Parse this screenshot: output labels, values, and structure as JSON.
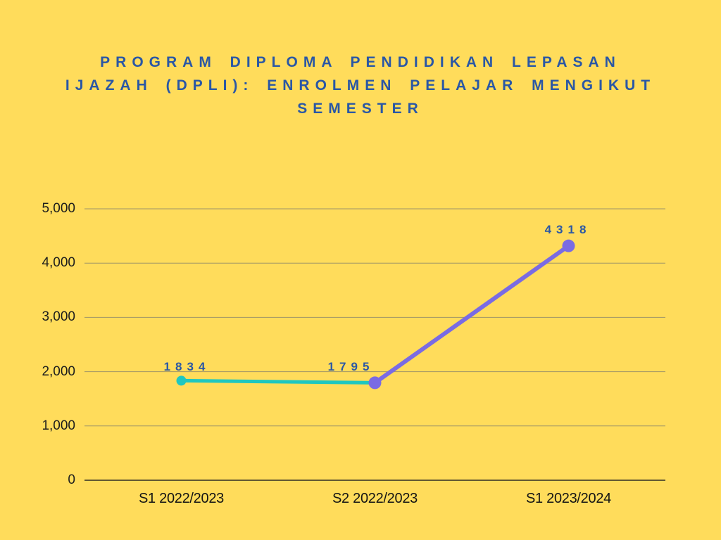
{
  "chart_data": {
    "type": "line",
    "title": "PROGRAM DIPLOMA PENDIDIKAN LEPASAN IJAZAH (DPLI): ENROLMEN PELAJAR MENGIKUT SEMESTER",
    "title_lines": [
      "PROGRAM DIPLOMA PENDIDIKAN LEPASAN",
      "IJAZAH (DPLI): ENROLMEN PELAJAR MENGIKUT",
      "SEMESTER"
    ],
    "categories": [
      "S1 2022/2023",
      "S2 2022/2023",
      "S1 2023/2024"
    ],
    "values": [
      1834,
      1795,
      4318
    ],
    "data_labels": [
      "1834",
      "1795",
      "4318"
    ],
    "segment_colors": [
      "#1FC7C0",
      "#7A6BE3"
    ],
    "point_colors": [
      "#1FC7C0",
      "#7A6BE3",
      "#7A6BE3"
    ],
    "xlabel": "",
    "ylabel": "",
    "ylim": [
      0,
      5000
    ],
    "y_ticks": {
      "values": [
        0,
        1000,
        2000,
        3000,
        4000,
        5000
      ],
      "labels": [
        "0",
        "1,000",
        "2,000",
        "3,000",
        "4,000",
        "5,000"
      ]
    },
    "grid": true,
    "legend": "none"
  },
  "colors": {
    "background": "#FFDC5B",
    "title_text": "#2A57A5",
    "data_label_text": "#2A57A5",
    "axis_text": "#1C1C1C",
    "gridline": "#9E9468",
    "axis_line": "#2F2D24",
    "series_teal": "#1FC7C0",
    "series_purple": "#7A6BE3"
  }
}
